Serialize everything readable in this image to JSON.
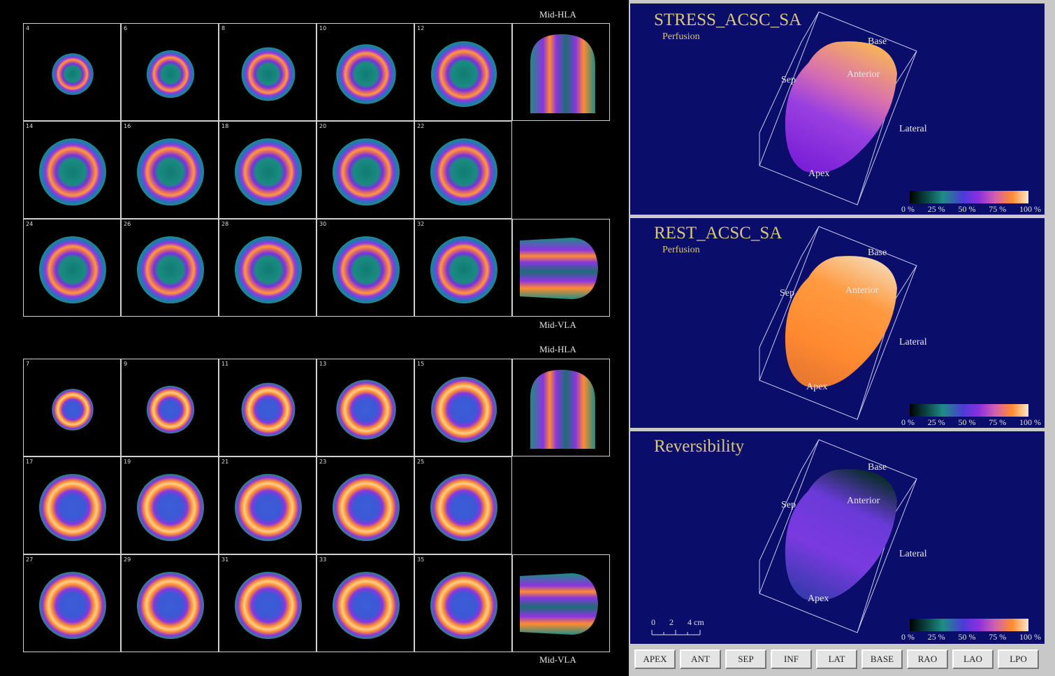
{
  "stress_grid": {
    "top_label": "Mid-HLA",
    "bottom_label": "Mid-VLA",
    "rows": [
      [
        "4",
        "6",
        "8",
        "10",
        "12"
      ],
      [
        "14",
        "16",
        "18",
        "20",
        "22"
      ],
      [
        "24",
        "26",
        "28",
        "30",
        "32"
      ]
    ]
  },
  "rest_grid": {
    "top_label": "Mid-HLA",
    "bottom_label": "Mid-VLA",
    "rows": [
      [
        "7",
        "9",
        "11",
        "13",
        "15"
      ],
      [
        "17",
        "19",
        "21",
        "23",
        "25"
      ],
      [
        "27",
        "29",
        "31",
        "33",
        "35"
      ]
    ]
  },
  "views": [
    {
      "title": "STRESS_ACSC_SA",
      "subtitle": "Perfusion",
      "mode": "stress",
      "labels": {
        "base": "Base",
        "anterior": "Anterior",
        "sep": "Sep",
        "lateral": "Lateral",
        "apex": "Apex"
      }
    },
    {
      "title": "REST_ACSC_SA",
      "subtitle": "Perfusion",
      "mode": "rest",
      "labels": {
        "base": "Base",
        "anterior": "Anterior",
        "sep": "Sep",
        "lateral": "Lateral",
        "apex": "Apex"
      }
    },
    {
      "title": "Reversibility",
      "subtitle": "",
      "mode": "rev",
      "labels": {
        "base": "Base",
        "anterior": "Anterior",
        "sep": "Sep",
        "lateral": "Lateral",
        "apex": "Apex"
      }
    }
  ],
  "color_scale": {
    "ticks": [
      "0 %",
      "25 %",
      "50 %",
      "75 %",
      "100 %"
    ]
  },
  "ruler": {
    "labels": [
      "0",
      "2",
      "4 cm"
    ]
  },
  "buttons": [
    "APEX",
    "ANT",
    "SEP",
    "INF",
    "LAT",
    "BASE",
    "RAO",
    "LAO",
    "LPO"
  ],
  "colors": {
    "view_bg": "#0b0d6b",
    "title_gold": "#d9c77a",
    "ring_green": "#1d8d84",
    "ring_purple": "#8a2ee0",
    "ring_orange": "#ff8a30"
  }
}
